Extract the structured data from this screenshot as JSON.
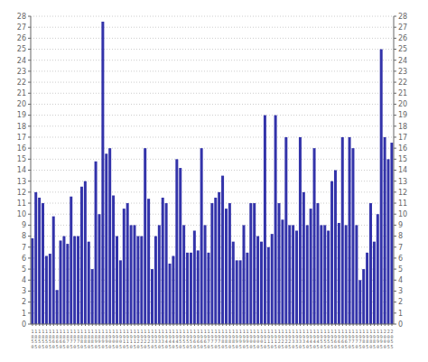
{
  "chart_data": {
    "type": "bar",
    "categories": [
      "1850",
      "1855",
      "1850",
      "1855",
      "1850",
      "1855",
      "1860",
      "1865",
      "1860",
      "1865",
      "1870",
      "1875",
      "1870",
      "1875",
      "1880",
      "1885",
      "1880",
      "1885",
      "1890",
      "1895",
      "1890",
      "1895",
      "1900",
      "1905",
      "1900",
      "1905",
      "1910",
      "1915",
      "1910",
      "1915",
      "1920",
      "1925",
      "1920",
      "1925",
      "1930",
      "1935",
      "1930",
      "1935",
      "1940",
      "1945",
      "1940",
      "1945",
      "1950",
      "1955",
      "1950",
      "1955",
      "1960",
      "1965",
      "1960",
      "1965",
      "1970",
      "1975",
      "1970",
      "1975",
      "1980",
      "1985",
      "1980",
      "1985",
      "1990",
      "1995",
      "1990",
      "1995",
      "1900",
      "1905",
      "1900",
      "1905",
      "1910",
      "1915",
      "1910",
      "1915",
      "1920",
      "1925",
      "1920",
      "1925",
      "1930",
      "1935",
      "1930",
      "1935",
      "1940",
      "1945",
      "1940",
      "1945",
      "1950",
      "1955",
      "1950",
      "1955",
      "1960",
      "1965",
      "1960",
      "1965",
      "1970",
      "1975",
      "1970",
      "1975",
      "1980",
      "1985",
      "1980",
      "1985",
      "1990",
      "1995",
      "2000",
      "2005",
      "2055"
    ],
    "values": [
      7.8,
      12.0,
      11.5,
      11.0,
      6.2,
      6.4,
      9.8,
      3.1,
      7.6,
      8.0,
      7.3,
      11.6,
      8.0,
      8.0,
      12.5,
      13.0,
      7.5,
      5.0,
      14.8,
      10.0,
      27.5,
      15.5,
      16.0,
      11.7,
      8.0,
      5.8,
      10.5,
      11.0,
      9.0,
      9.0,
      8.0,
      8.0,
      16.0,
      11.4,
      5.0,
      8.0,
      9.0,
      11.5,
      11.0,
      5.5,
      6.2,
      15.0,
      14.2,
      9.0,
      6.5,
      6.5,
      8.5,
      6.7,
      16.0,
      9.0,
      6.5,
      11.0,
      11.5,
      12.0,
      13.5,
      10.5,
      11.0,
      7.5,
      5.8,
      5.8,
      9.0,
      6.5,
      11.0,
      11.0,
      8.0,
      7.5,
      19.0,
      7.0,
      8.2,
      19.0,
      11.0,
      9.5,
      17.0,
      9.0,
      9.0,
      8.5,
      17.0,
      12.0,
      9.0,
      10.5,
      16.0,
      11.0,
      9.0,
      9.0,
      8.5,
      13.0,
      14.0,
      9.2,
      17.0,
      9.0,
      17.0,
      16.0,
      9.0,
      4.0,
      5.0,
      6.5,
      11.0,
      7.5,
      10.0,
      25.0,
      17.0,
      15.0,
      16.5
    ],
    "color": "#3333aa",
    "ylim": [
      0,
      28
    ],
    "yticks": [
      0,
      1,
      2,
      3,
      4,
      5,
      6,
      7,
      8,
      9,
      10,
      11,
      12,
      13,
      14,
      15,
      16,
      17,
      18,
      19,
      20,
      21,
      22,
      23,
      24,
      25,
      26,
      27,
      28
    ],
    "y2lim": [
      0,
      28
    ],
    "y2ticks": [
      0,
      1,
      2,
      3,
      4,
      5,
      6,
      7,
      8,
      9,
      10,
      11,
      12,
      13,
      14,
      15,
      16,
      17,
      18,
      19,
      20,
      21,
      22,
      23,
      24,
      25,
      26,
      27,
      28
    ],
    "grid": true
  }
}
